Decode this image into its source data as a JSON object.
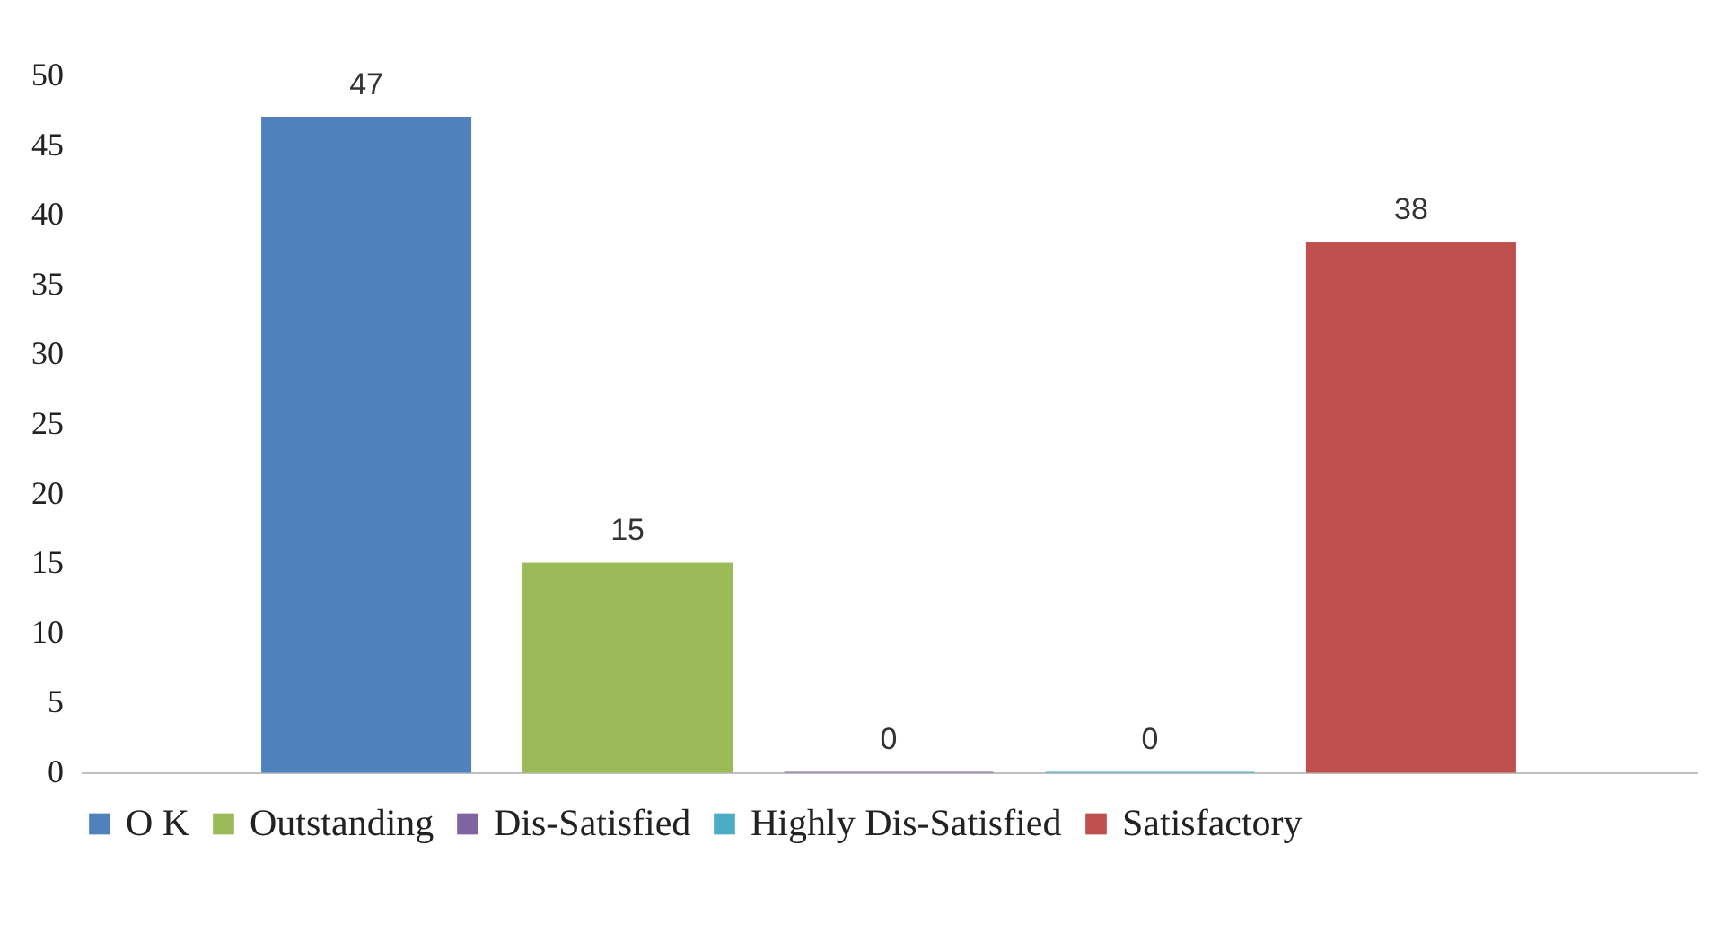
{
  "chart_data": {
    "type": "bar",
    "categories": [
      null
    ],
    "series": [
      {
        "name": "O K",
        "color": "#4f81bd",
        "values": [
          47
        ]
      },
      {
        "name": "Outstanding",
        "color": "#9bbb59",
        "values": [
          15
        ]
      },
      {
        "name": "Dis-Satisfied",
        "color": "#8064a2",
        "values": [
          0
        ]
      },
      {
        "name": "Highly Dis-Satisfied",
        "color": "#4bacc6",
        "values": [
          0
        ]
      },
      {
        "name": "Satisfactory",
        "color": "#c0504d",
        "values": [
          38
        ]
      }
    ],
    "ylim": [
      0,
      50
    ],
    "yticks": [
      0,
      5,
      10,
      15,
      20,
      25,
      30,
      35,
      40,
      45,
      50
    ],
    "grid": false,
    "legend": "bottom",
    "data_labels": true
  }
}
